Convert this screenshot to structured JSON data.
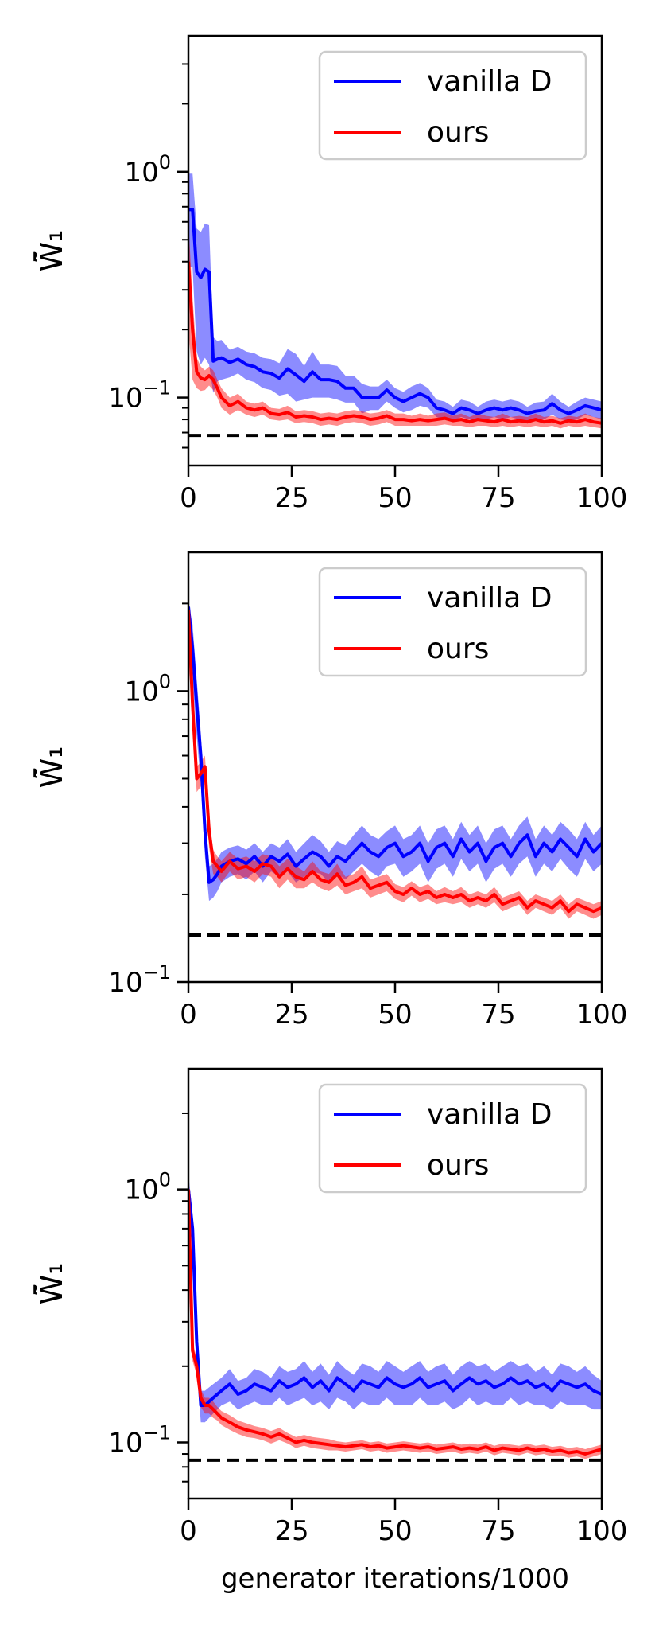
{
  "chart_data": [
    {
      "type": "line",
      "yscale": "log",
      "xlim": [
        0,
        100
      ],
      "ylim": [
        0.05,
        4.0
      ],
      "xticks": [
        "0",
        "25",
        "50",
        "75",
        "100"
      ],
      "yticks": [
        {
          "base": "10",
          "exp": "0",
          "value": 1.0
        },
        {
          "base": "10",
          "exp": "−1",
          "value": 0.1
        }
      ],
      "ylabel": "W̃̄₁",
      "xlabel": "",
      "legend": {
        "position": "upper-right",
        "entries": [
          "vanilla D",
          "ours"
        ]
      },
      "baseline": 0.068,
      "x": [
        0,
        1,
        2,
        3,
        4,
        5,
        6,
        7,
        8,
        10,
        12,
        14,
        16,
        18,
        20,
        22,
        24,
        26,
        28,
        30,
        32,
        34,
        36,
        38,
        40,
        42,
        44,
        46,
        48,
        50,
        52,
        54,
        56,
        58,
        60,
        62,
        64,
        66,
        68,
        70,
        72,
        74,
        76,
        78,
        80,
        82,
        84,
        86,
        88,
        90,
        92,
        94,
        96,
        98,
        100
      ],
      "series": [
        {
          "name": "vanilla D",
          "color": "#0000ff",
          "values": [
            0.68,
            0.68,
            0.36,
            0.34,
            0.37,
            0.36,
            0.145,
            0.148,
            0.15,
            0.143,
            0.148,
            0.14,
            0.137,
            0.13,
            0.128,
            0.122,
            0.134,
            0.126,
            0.118,
            0.13,
            0.12,
            0.12,
            0.118,
            0.11,
            0.11,
            0.1,
            0.1,
            0.1,
            0.108,
            0.1,
            0.096,
            0.1,
            0.104,
            0.1,
            0.09,
            0.088,
            0.085,
            0.09,
            0.088,
            0.085,
            0.088,
            0.09,
            0.088,
            0.09,
            0.088,
            0.085,
            0.087,
            0.088,
            0.094,
            0.088,
            0.085,
            0.088,
            0.092,
            0.09,
            0.088
          ],
          "band": [
            0.3,
            0.3,
            0.2,
            0.2,
            0.22,
            0.22,
            0.04,
            0.03,
            0.03,
            0.02,
            0.02,
            0.02,
            0.02,
            0.02,
            0.02,
            0.02,
            0.03,
            0.03,
            0.02,
            0.03,
            0.02,
            0.02,
            0.02,
            0.015,
            0.015,
            0.015,
            0.012,
            0.012,
            0.012,
            0.01,
            0.01,
            0.012,
            0.012,
            0.01,
            0.008,
            0.008,
            0.006,
            0.008,
            0.008,
            0.006,
            0.008,
            0.008,
            0.008,
            0.008,
            0.008,
            0.006,
            0.008,
            0.008,
            0.01,
            0.008,
            0.006,
            0.008,
            0.008,
            0.008,
            0.008
          ]
        },
        {
          "name": "ours",
          "color": "#ff0000",
          "values": [
            0.4,
            0.2,
            0.13,
            0.122,
            0.12,
            0.125,
            0.12,
            0.11,
            0.1,
            0.092,
            0.096,
            0.09,
            0.088,
            0.09,
            0.085,
            0.084,
            0.086,
            0.082,
            0.083,
            0.082,
            0.08,
            0.081,
            0.08,
            0.082,
            0.083,
            0.082,
            0.08,
            0.081,
            0.083,
            0.08,
            0.08,
            0.079,
            0.08,
            0.079,
            0.08,
            0.081,
            0.079,
            0.08,
            0.078,
            0.08,
            0.079,
            0.078,
            0.08,
            0.078,
            0.079,
            0.078,
            0.08,
            0.078,
            0.079,
            0.077,
            0.079,
            0.078,
            0.08,
            0.078,
            0.077
          ],
          "band": [
            0.2,
            0.08,
            0.02,
            0.015,
            0.012,
            0.012,
            0.012,
            0.01,
            0.01,
            0.008,
            0.008,
            0.006,
            0.006,
            0.006,
            0.005,
            0.005,
            0.006,
            0.005,
            0.005,
            0.005,
            0.005,
            0.005,
            0.005,
            0.005,
            0.005,
            0.005,
            0.005,
            0.005,
            0.005,
            0.005,
            0.005,
            0.004,
            0.005,
            0.004,
            0.005,
            0.005,
            0.004,
            0.005,
            0.004,
            0.005,
            0.004,
            0.004,
            0.005,
            0.004,
            0.004,
            0.004,
            0.005,
            0.004,
            0.004,
            0.004,
            0.004,
            0.004,
            0.005,
            0.004,
            0.004
          ]
        }
      ]
    },
    {
      "type": "line",
      "yscale": "log",
      "xlim": [
        0,
        100
      ],
      "ylim": [
        0.1,
        3.0
      ],
      "xticks": [
        "0",
        "25",
        "50",
        "75",
        "100"
      ],
      "yticks": [
        {
          "base": "10",
          "exp": "0",
          "value": 1.0
        },
        {
          "base": "10",
          "exp": "−1",
          "value": 0.1
        }
      ],
      "ylabel": "W̃̄₁",
      "xlabel": "",
      "legend": {
        "position": "upper-right",
        "entries": [
          "vanilla D",
          "ours"
        ]
      },
      "baseline": 0.145,
      "x": [
        0,
        1,
        2,
        3,
        4,
        5,
        6,
        7,
        8,
        10,
        12,
        14,
        16,
        18,
        20,
        22,
        24,
        26,
        28,
        30,
        32,
        34,
        36,
        38,
        40,
        42,
        44,
        46,
        48,
        50,
        52,
        54,
        56,
        58,
        60,
        62,
        64,
        66,
        68,
        70,
        72,
        74,
        76,
        78,
        80,
        82,
        84,
        86,
        88,
        90,
        92,
        94,
        96,
        98,
        100
      ],
      "series": [
        {
          "name": "vanilla D",
          "color": "#0000ff",
          "values": [
            1.95,
            1.4,
            0.9,
            0.6,
            0.33,
            0.22,
            0.225,
            0.235,
            0.25,
            0.26,
            0.265,
            0.255,
            0.27,
            0.25,
            0.27,
            0.26,
            0.275,
            0.25,
            0.265,
            0.28,
            0.27,
            0.25,
            0.27,
            0.26,
            0.28,
            0.3,
            0.28,
            0.27,
            0.29,
            0.3,
            0.27,
            0.28,
            0.3,
            0.26,
            0.29,
            0.3,
            0.27,
            0.31,
            0.28,
            0.3,
            0.26,
            0.29,
            0.3,
            0.27,
            0.3,
            0.32,
            0.27,
            0.3,
            0.28,
            0.31,
            0.29,
            0.27,
            0.31,
            0.28,
            0.3
          ],
          "band": [
            0.05,
            0.3,
            0.2,
            0.12,
            0.06,
            0.03,
            0.03,
            0.03,
            0.03,
            0.03,
            0.03,
            0.03,
            0.03,
            0.03,
            0.03,
            0.03,
            0.035,
            0.03,
            0.035,
            0.04,
            0.035,
            0.03,
            0.035,
            0.035,
            0.04,
            0.045,
            0.04,
            0.04,
            0.04,
            0.045,
            0.04,
            0.04,
            0.045,
            0.04,
            0.045,
            0.045,
            0.04,
            0.045,
            0.04,
            0.045,
            0.04,
            0.045,
            0.045,
            0.04,
            0.045,
            0.05,
            0.04,
            0.045,
            0.04,
            0.045,
            0.045,
            0.04,
            0.045,
            0.04,
            0.045
          ]
        },
        {
          "name": "ours",
          "color": "#ff0000",
          "values": [
            1.9,
            0.9,
            0.5,
            0.52,
            0.55,
            0.33,
            0.26,
            0.25,
            0.24,
            0.26,
            0.245,
            0.25,
            0.24,
            0.255,
            0.25,
            0.23,
            0.245,
            0.23,
            0.225,
            0.24,
            0.225,
            0.22,
            0.235,
            0.215,
            0.22,
            0.23,
            0.21,
            0.215,
            0.22,
            0.205,
            0.2,
            0.21,
            0.2,
            0.205,
            0.195,
            0.2,
            0.195,
            0.2,
            0.19,
            0.195,
            0.19,
            0.2,
            0.185,
            0.19,
            0.195,
            0.18,
            0.19,
            0.185,
            0.18,
            0.19,
            0.175,
            0.185,
            0.18,
            0.175,
            0.18
          ],
          "band": [
            0.1,
            0.1,
            0.05,
            0.05,
            0.05,
            0.04,
            0.025,
            0.02,
            0.02,
            0.02,
            0.02,
            0.02,
            0.02,
            0.02,
            0.02,
            0.02,
            0.02,
            0.02,
            0.015,
            0.02,
            0.015,
            0.015,
            0.02,
            0.015,
            0.015,
            0.02,
            0.015,
            0.015,
            0.015,
            0.012,
            0.012,
            0.012,
            0.012,
            0.012,
            0.01,
            0.012,
            0.01,
            0.012,
            0.01,
            0.01,
            0.01,
            0.012,
            0.01,
            0.01,
            0.01,
            0.01,
            0.01,
            0.01,
            0.01,
            0.01,
            0.01,
            0.01,
            0.01,
            0.01,
            0.01
          ]
        }
      ]
    },
    {
      "type": "line",
      "yscale": "log",
      "xlim": [
        0,
        100
      ],
      "ylim": [
        0.06,
        3.0
      ],
      "xticks": [
        "0",
        "25",
        "50",
        "75",
        "100"
      ],
      "yticks": [
        {
          "base": "10",
          "exp": "0",
          "value": 1.0
        },
        {
          "base": "10",
          "exp": "−1",
          "value": 0.1
        }
      ],
      "ylabel": "W̃̄₁",
      "xlabel": "generator iterations/1000",
      "legend": {
        "position": "upper-right",
        "entries": [
          "vanilla D",
          "ours"
        ]
      },
      "baseline": 0.085,
      "x": [
        0,
        1,
        2,
        3,
        4,
        5,
        6,
        7,
        8,
        10,
        12,
        14,
        16,
        18,
        20,
        22,
        24,
        26,
        28,
        30,
        32,
        34,
        36,
        38,
        40,
        42,
        44,
        46,
        48,
        50,
        52,
        54,
        56,
        58,
        60,
        62,
        64,
        66,
        68,
        70,
        72,
        74,
        76,
        78,
        80,
        82,
        84,
        86,
        88,
        90,
        92,
        94,
        96,
        98,
        100
      ],
      "series": [
        {
          "name": "vanilla D",
          "color": "#0000ff",
          "values": [
            1.0,
            0.7,
            0.25,
            0.14,
            0.14,
            0.145,
            0.15,
            0.155,
            0.16,
            0.17,
            0.155,
            0.16,
            0.17,
            0.165,
            0.16,
            0.175,
            0.165,
            0.17,
            0.18,
            0.165,
            0.175,
            0.16,
            0.18,
            0.17,
            0.16,
            0.175,
            0.17,
            0.165,
            0.18,
            0.17,
            0.165,
            0.17,
            0.18,
            0.165,
            0.17,
            0.175,
            0.16,
            0.17,
            0.18,
            0.17,
            0.175,
            0.165,
            0.17,
            0.18,
            0.17,
            0.175,
            0.165,
            0.17,
            0.16,
            0.175,
            0.17,
            0.165,
            0.17,
            0.16,
            0.155
          ],
          "band": [
            0.15,
            0.1,
            0.05,
            0.02,
            0.02,
            0.02,
            0.02,
            0.02,
            0.02,
            0.025,
            0.02,
            0.02,
            0.025,
            0.025,
            0.02,
            0.025,
            0.025,
            0.025,
            0.03,
            0.025,
            0.03,
            0.025,
            0.03,
            0.025,
            0.025,
            0.03,
            0.03,
            0.025,
            0.03,
            0.03,
            0.025,
            0.03,
            0.03,
            0.025,
            0.03,
            0.03,
            0.025,
            0.03,
            0.03,
            0.03,
            0.03,
            0.025,
            0.03,
            0.03,
            0.03,
            0.03,
            0.025,
            0.03,
            0.025,
            0.03,
            0.03,
            0.025,
            0.03,
            0.025,
            0.02
          ]
        },
        {
          "name": "ours",
          "color": "#ff0000",
          "values": [
            1.0,
            0.23,
            0.2,
            0.15,
            0.14,
            0.14,
            0.135,
            0.13,
            0.125,
            0.12,
            0.115,
            0.112,
            0.11,
            0.108,
            0.105,
            0.108,
            0.104,
            0.1,
            0.102,
            0.1,
            0.099,
            0.098,
            0.097,
            0.096,
            0.097,
            0.098,
            0.096,
            0.097,
            0.095,
            0.096,
            0.097,
            0.096,
            0.095,
            0.096,
            0.094,
            0.095,
            0.096,
            0.094,
            0.095,
            0.094,
            0.096,
            0.093,
            0.095,
            0.094,
            0.093,
            0.095,
            0.093,
            0.094,
            0.092,
            0.093,
            0.091,
            0.092,
            0.09,
            0.092,
            0.094
          ],
          "band": [
            0.1,
            0.02,
            0.015,
            0.012,
            0.01,
            0.01,
            0.01,
            0.008,
            0.008,
            0.008,
            0.007,
            0.007,
            0.006,
            0.006,
            0.006,
            0.006,
            0.005,
            0.005,
            0.005,
            0.005,
            0.005,
            0.005,
            0.004,
            0.004,
            0.004,
            0.004,
            0.004,
            0.004,
            0.004,
            0.004,
            0.004,
            0.004,
            0.004,
            0.004,
            0.004,
            0.004,
            0.004,
            0.004,
            0.004,
            0.004,
            0.004,
            0.004,
            0.004,
            0.004,
            0.004,
            0.004,
            0.004,
            0.004,
            0.004,
            0.004,
            0.004,
            0.004,
            0.004,
            0.004,
            0.004
          ]
        }
      ]
    }
  ]
}
